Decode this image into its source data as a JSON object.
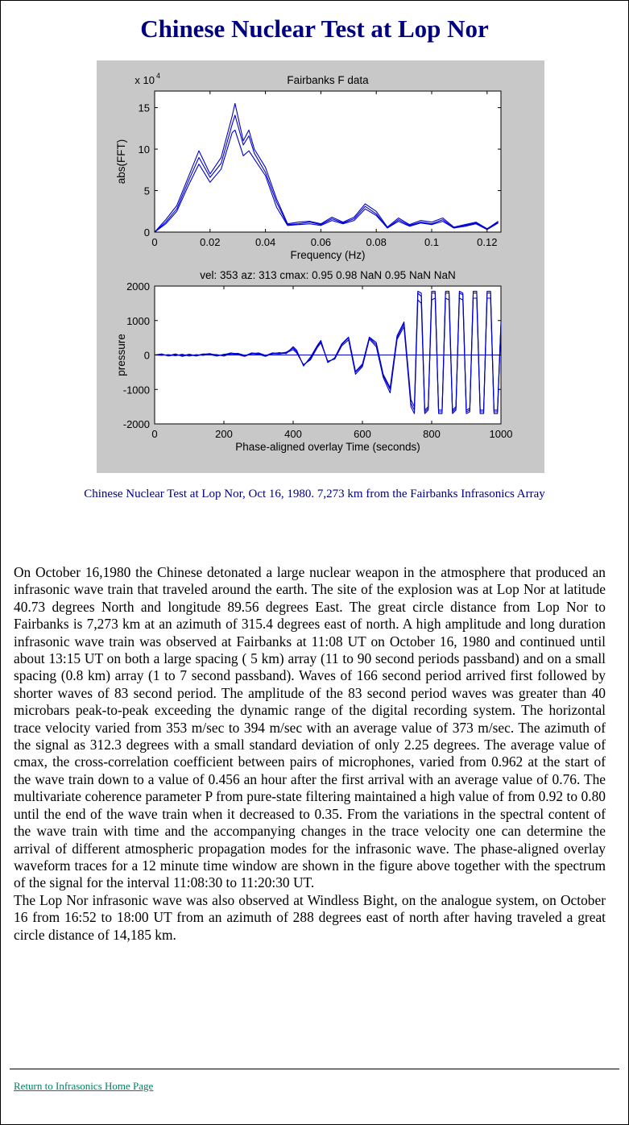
{
  "page": {
    "title": "Chinese Nuclear Test at Lop Nor",
    "caption": "Chinese Nuclear Test at Lop Nor, Oct 16, 1980.  7,273 km from the Fairbanks Infrasonics Array",
    "paragraphs": [
      " On October 16,1980 the Chinese detonated a large nuclear weapon in the atmosphere that produced an infrasonic wave train that traveled around the earth.  The site of the explosion was at Lop Nor at latitude 40.73 degrees North and longitude 89.56 degrees East.  The great circle distance from Lop Nor to Fairbanks is 7,273 km at an azimuth of 315.4 degrees east of north.  A high amplitude and long duration  infrasonic wave train was observed at Fairbanks at 11:08 UT on October 16, 1980 and continued until about 13:15 UT on both a large spacing ( 5 km) array (11 to 90 second periods passband) and on a small spacing (0.8 km) array (1 to 7 second passband). Waves of 166 second period arrived first followed by shorter waves of 83 second period.  The amplitude of the 83 second period waves was greater than 40 microbars peak-to-peak exceeding the dynamic range of the digital recording system. The horizontal trace velocity varied from 353 m/sec to 394 m/sec with an average value of 373 m/sec.  The azimuth of the signal as 312.3 degrees with a small standard deviation of only 2.25 degrees.  The average value of cmax, the cross-correlation coefficient between pairs of microphones, varied from 0.962 at the start of the wave train down to a value of  0.456 an hour after  the first arrival with an average value of 0.76.  The multivariate coherence parameter P from pure-state filtering maintained a high value of from 0.92 to 0.80 until the end of the wave train when it decreased to 0.35.  From the variations in the spectral content of the wave train with time and the accompanying changes in the trace velocity one can determine the arrival of different atmospheric propagation modes for the infrasonic wave. The phase-aligned overlay waveform traces for a 12 minute time window are shown in the figure  above together with the spectrum of the signal for the interval 11:08:30 to 11:20:30 UT.",
      "  The Lop Nor infrasonic wave was also observed at Windless Bight, on the analogue system, on October 16 from 16:52 to 18:00 UT from an azimuth of 288 degrees east of north after having traveled a great circle distance of 14,185 km."
    ],
    "link": "Return to Infrasonics Home Page"
  },
  "chart_data": [
    {
      "type": "line",
      "title": "Fairbanks F data",
      "xlabel": "Frequency (Hz)",
      "ylabel": "abs(FFT)",
      "yscale_label": "x 10",
      "yscale_exp": "4",
      "xlim": [
        0,
        0.125
      ],
      "ylim": [
        0,
        17
      ],
      "xticks": [
        "0",
        "0.02",
        "0.04",
        "0.06",
        "0.08",
        "0.1",
        "0.12"
      ],
      "xtick_values": [
        0,
        0.02,
        0.04,
        0.06,
        0.08,
        0.1,
        0.12
      ],
      "yticks": [
        "0",
        "5",
        "10",
        "15"
      ],
      "ytick_values": [
        0,
        5,
        10,
        15
      ],
      "color": "#0000cc",
      "series": [
        {
          "x": [
            0,
            0.004,
            0.008,
            0.012,
            0.016,
            0.02,
            0.024,
            0.028,
            0.029,
            0.032,
            0.034,
            0.036,
            0.04,
            0.044,
            0.048,
            0.052,
            0.056,
            0.06,
            0.064,
            0.068,
            0.072,
            0.076,
            0.08,
            0.084,
            0.088,
            0.092,
            0.096,
            0.1,
            0.104,
            0.108,
            0.112,
            0.116,
            0.12,
            0.124
          ],
          "y": [
            0,
            1.5,
            3.2,
            6.5,
            9.8,
            7.0,
            9.0,
            14.0,
            15.5,
            11.0,
            12.3,
            10.0,
            7.8,
            4.0,
            1.0,
            1.2,
            1.3,
            1.0,
            1.8,
            1.2,
            1.8,
            3.4,
            2.5,
            0.6,
            1.7,
            0.9,
            1.4,
            1.2,
            1.7,
            0.6,
            0.9,
            1.2,
            0.4,
            1.3
          ]
        },
        {
          "x": [
            0,
            0.004,
            0.008,
            0.012,
            0.016,
            0.02,
            0.024,
            0.028,
            0.029,
            0.032,
            0.034,
            0.036,
            0.04,
            0.044,
            0.048,
            0.052,
            0.056,
            0.06,
            0.064,
            0.068,
            0.072,
            0.076,
            0.08,
            0.084,
            0.088,
            0.092,
            0.096,
            0.1,
            0.104,
            0.108,
            0.112,
            0.116,
            0.12,
            0.124
          ],
          "y": [
            0,
            1.2,
            2.8,
            6.0,
            9.0,
            6.6,
            8.3,
            13.0,
            14.1,
            10.5,
            11.6,
            9.5,
            7.2,
            3.6,
            0.9,
            1.0,
            1.2,
            0.9,
            1.6,
            1.1,
            1.6,
            3.1,
            2.2,
            0.5,
            1.5,
            0.8,
            1.2,
            1.0,
            1.5,
            0.5,
            0.8,
            1.1,
            0.4,
            1.2
          ]
        },
        {
          "x": [
            0,
            0.004,
            0.008,
            0.012,
            0.016,
            0.02,
            0.024,
            0.028,
            0.029,
            0.032,
            0.034,
            0.036,
            0.04,
            0.044,
            0.048,
            0.052,
            0.056,
            0.06,
            0.064,
            0.068,
            0.072,
            0.076,
            0.08,
            0.084,
            0.088,
            0.092,
            0.096,
            0.1,
            0.104,
            0.108,
            0.112,
            0.116,
            0.12,
            0.124
          ],
          "y": [
            0,
            1.0,
            2.5,
            5.5,
            8.2,
            6.0,
            7.6,
            12.0,
            12.3,
            9.2,
            9.8,
            8.8,
            6.8,
            3.0,
            0.8,
            0.9,
            1.0,
            0.8,
            1.4,
            1.0,
            1.4,
            2.8,
            2.0,
            0.5,
            1.3,
            0.7,
            1.1,
            0.9,
            1.3,
            0.5,
            0.7,
            1.0,
            0.3,
            1.1
          ]
        }
      ]
    },
    {
      "type": "line",
      "title": "vel: 353 az: 313 cmax: 0.95 0.98 NaN 0.95 NaN NaN",
      "xlabel": "Phase-aligned overlay   Time (seconds)",
      "ylabel": "pressure",
      "xlim": [
        0,
        1000
      ],
      "ylim": [
        -2000,
        2000
      ],
      "xticks": [
        "0",
        "200",
        "400",
        "600",
        "800",
        "1000"
      ],
      "xtick_values": [
        0,
        200,
        400,
        600,
        800,
        1000
      ],
      "yticks": [
        "2000",
        "1000",
        "0",
        "-1000",
        "-2000"
      ],
      "ytick_values": [
        2000,
        1000,
        0,
        -1000,
        -2000
      ],
      "color": "#0000cc",
      "series": [
        {
          "x": [
            0,
            20,
            40,
            60,
            80,
            100,
            120,
            140,
            160,
            180,
            200,
            220,
            240,
            260,
            280,
            300,
            320,
            340,
            360,
            380,
            400,
            410,
            430,
            450,
            470,
            480,
            500,
            520,
            540,
            560,
            580,
            600,
            620,
            640,
            660,
            680,
            700,
            720,
            740,
            750,
            760,
            770,
            780,
            790,
            800,
            810,
            820,
            830,
            840,
            850,
            860,
            870,
            880,
            890,
            900,
            910,
            920,
            930,
            940,
            950,
            960,
            970,
            980,
            990,
            1000
          ],
          "y": [
            0,
            20,
            -20,
            30,
            -40,
            10,
            -30,
            20,
            40,
            -20,
            10,
            60,
            30,
            -30,
            60,
            40,
            -20,
            60,
            50,
            80,
            200,
            100,
            -300,
            -100,
            250,
            400,
            -200,
            -100,
            300,
            500,
            -500,
            -300,
            500,
            300,
            -600,
            -1000,
            500,
            900,
            -1400,
            -1600,
            1800,
            1700,
            -1700,
            -1600,
            1800,
            1800,
            -1700,
            -1700,
            1800,
            1800,
            -1700,
            -1600,
            1800,
            1750,
            -1700,
            -1650,
            1800,
            1800,
            -1700,
            -1700,
            1800,
            1800,
            -1700,
            -1700,
            900
          ]
        },
        {
          "x": [
            0,
            20,
            40,
            60,
            80,
            100,
            120,
            140,
            160,
            180,
            200,
            220,
            240,
            260,
            280,
            300,
            320,
            340,
            360,
            380,
            400,
            410,
            430,
            450,
            470,
            480,
            500,
            520,
            540,
            560,
            580,
            600,
            620,
            640,
            660,
            680,
            700,
            720,
            740,
            750,
            760,
            770,
            780,
            790,
            800,
            810,
            820,
            830,
            840,
            850,
            860,
            870,
            880,
            890,
            900,
            910,
            920,
            930,
            940,
            950,
            960,
            970,
            980,
            990,
            1000
          ],
          "y": [
            0,
            -10,
            10,
            -20,
            20,
            -30,
            10,
            -10,
            20,
            10,
            -30,
            40,
            10,
            -40,
            40,
            20,
            -40,
            40,
            30,
            60,
            160,
            60,
            -280,
            -140,
            220,
            350,
            -180,
            -120,
            260,
            440,
            -560,
            -340,
            460,
            240,
            -650,
            -1100,
            450,
            820,
            -1500,
            -1700,
            1600,
            1500,
            -1650,
            -1550,
            1600,
            1650,
            -1650,
            -1650,
            1650,
            1600,
            -1650,
            -1550,
            1650,
            1600,
            -1650,
            -1600,
            1650,
            1650,
            -1650,
            -1650,
            1650,
            1650,
            -1650,
            -1650,
            850
          ]
        },
        {
          "x": [
            0,
            20,
            40,
            60,
            80,
            100,
            120,
            140,
            160,
            180,
            200,
            220,
            240,
            260,
            280,
            300,
            320,
            340,
            360,
            380,
            400,
            410,
            430,
            450,
            470,
            480,
            500,
            520,
            540,
            560,
            580,
            600,
            620,
            640,
            660,
            680,
            700,
            720,
            740,
            750,
            760,
            770,
            780,
            790,
            800,
            810,
            820,
            830,
            840,
            850,
            860,
            870,
            880,
            890,
            900,
            910,
            920,
            930,
            940,
            950,
            960,
            970,
            980,
            990,
            1000
          ],
          "y": [
            0,
            30,
            -30,
            10,
            -20,
            20,
            -20,
            30,
            10,
            -30,
            20,
            30,
            50,
            -10,
            30,
            60,
            -10,
            30,
            70,
            40,
            240,
            140,
            -320,
            -60,
            280,
            420,
            -220,
            -80,
            320,
            520,
            -480,
            -260,
            520,
            360,
            -560,
            -950,
            560,
            960,
            -1300,
            -1500,
            1850,
            1800,
            -1600,
            -1500,
            1850,
            1850,
            -1600,
            -1600,
            1850,
            1850,
            -1600,
            -1500,
            1850,
            1800,
            -1600,
            -1550,
            1850,
            1850,
            -1600,
            -1600,
            1850,
            1850,
            -1600,
            -1600,
            950
          ]
        }
      ]
    }
  ]
}
